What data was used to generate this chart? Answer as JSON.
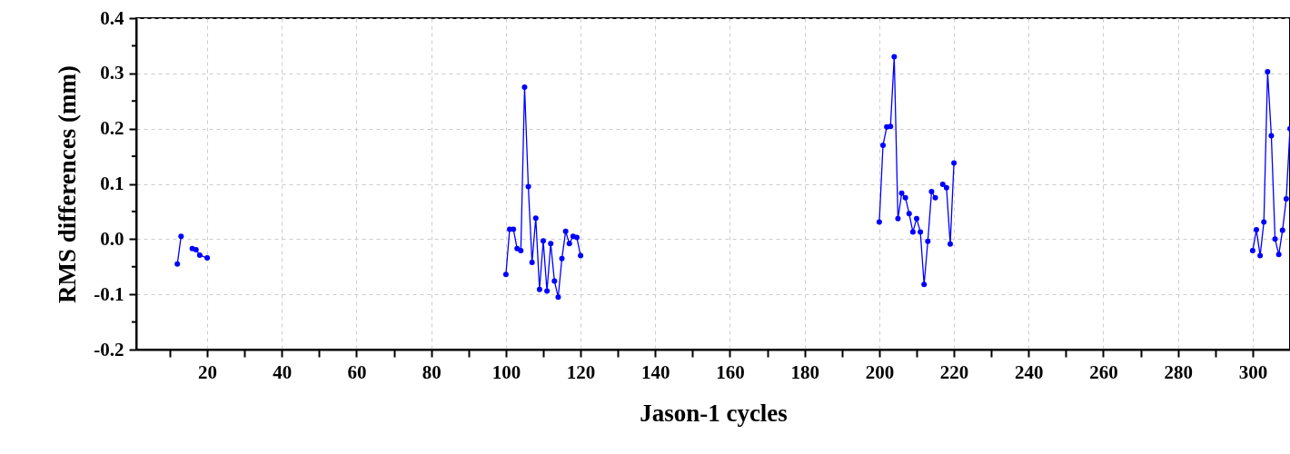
{
  "chart_data": {
    "type": "line",
    "xlabel": "Jason-1 cycles",
    "ylabel": "RMS differences (mm)",
    "marker": "circle",
    "grid": true,
    "xlim": [
      1,
      310
    ],
    "ylim": [
      -0.2,
      0.4
    ],
    "xticks": [
      {
        "value": 10,
        "label": null
      },
      20,
      {
        "value": 30,
        "label": null
      },
      40,
      {
        "value": 50,
        "label": null
      },
      60,
      {
        "value": 70,
        "label": null
      },
      80,
      {
        "value": 90,
        "label": null
      },
      100,
      {
        "value": 110,
        "label": null
      },
      120,
      {
        "value": 130,
        "label": null
      },
      140,
      {
        "value": 150,
        "label": null
      },
      160,
      {
        "value": 170,
        "label": null
      },
      180,
      {
        "value": 190,
        "label": null
      },
      200,
      {
        "value": 210,
        "label": null
      },
      220,
      {
        "value": 230,
        "label": null
      },
      240,
      {
        "value": 250,
        "label": null
      },
      260,
      {
        "value": 270,
        "label": null
      },
      280,
      {
        "value": 290,
        "label": null
      },
      300
    ],
    "yticks": [
      -0.2,
      {
        "value": -0.15,
        "label": null
      },
      -0.1,
      {
        "value": -0.05,
        "label": null
      },
      {
        "value": 0,
        "label": "0.0"
      },
      {
        "value": 0.05,
        "label": null
      },
      0.1,
      {
        "value": 0.15,
        "label": null
      },
      0.2,
      {
        "value": 0.25,
        "label": null
      },
      0.3,
      {
        "value": 0.35,
        "label": null
      },
      0.4
    ],
    "series": [
      {
        "color": "#0000ff",
        "x": [
          12,
          13,
          15,
          16,
          17,
          18,
          20
        ],
        "values": [
          -0.045,
          0.005,
          null,
          -0.017,
          -0.019,
          -0.029,
          -0.034
        ]
      },
      {
        "color": "#0000ff",
        "x": [
          100,
          101,
          102,
          103,
          104,
          105,
          106,
          107,
          108,
          109,
          110,
          111,
          112,
          113,
          114,
          115,
          116,
          117,
          118,
          119,
          120
        ],
        "values": [
          -0.064,
          0.018,
          0.018,
          -0.017,
          -0.021,
          0.275,
          0.095,
          -0.042,
          0.038,
          -0.091,
          -0.003,
          -0.094,
          -0.008,
          -0.076,
          -0.105,
          -0.035,
          0.014,
          -0.008,
          0.005,
          0.003,
          -0.03
        ]
      },
      {
        "color": "#0000ff",
        "x": [
          200,
          201,
          202,
          203,
          204,
          205,
          206,
          207,
          208,
          209,
          210,
          211,
          212,
          213,
          214,
          215,
          216,
          217,
          218,
          219,
          220
        ],
        "values": [
          0.031,
          0.17,
          0.203,
          0.204,
          0.33,
          0.037,
          0.083,
          0.075,
          0.046,
          0.013,
          0.037,
          0.013,
          -0.082,
          -0.004,
          0.086,
          0.075,
          null,
          0.099,
          0.093,
          -0.009,
          0.138
        ]
      },
      {
        "color": "#0000ff",
        "x": [
          300,
          301,
          302,
          303,
          304,
          305,
          306,
          307,
          308,
          309,
          310
        ],
        "values": [
          -0.021,
          0.017,
          -0.03,
          0.031,
          0.303,
          0.187,
          0,
          -0.028,
          0.016,
          0.073,
          0.2
        ]
      }
    ]
  }
}
